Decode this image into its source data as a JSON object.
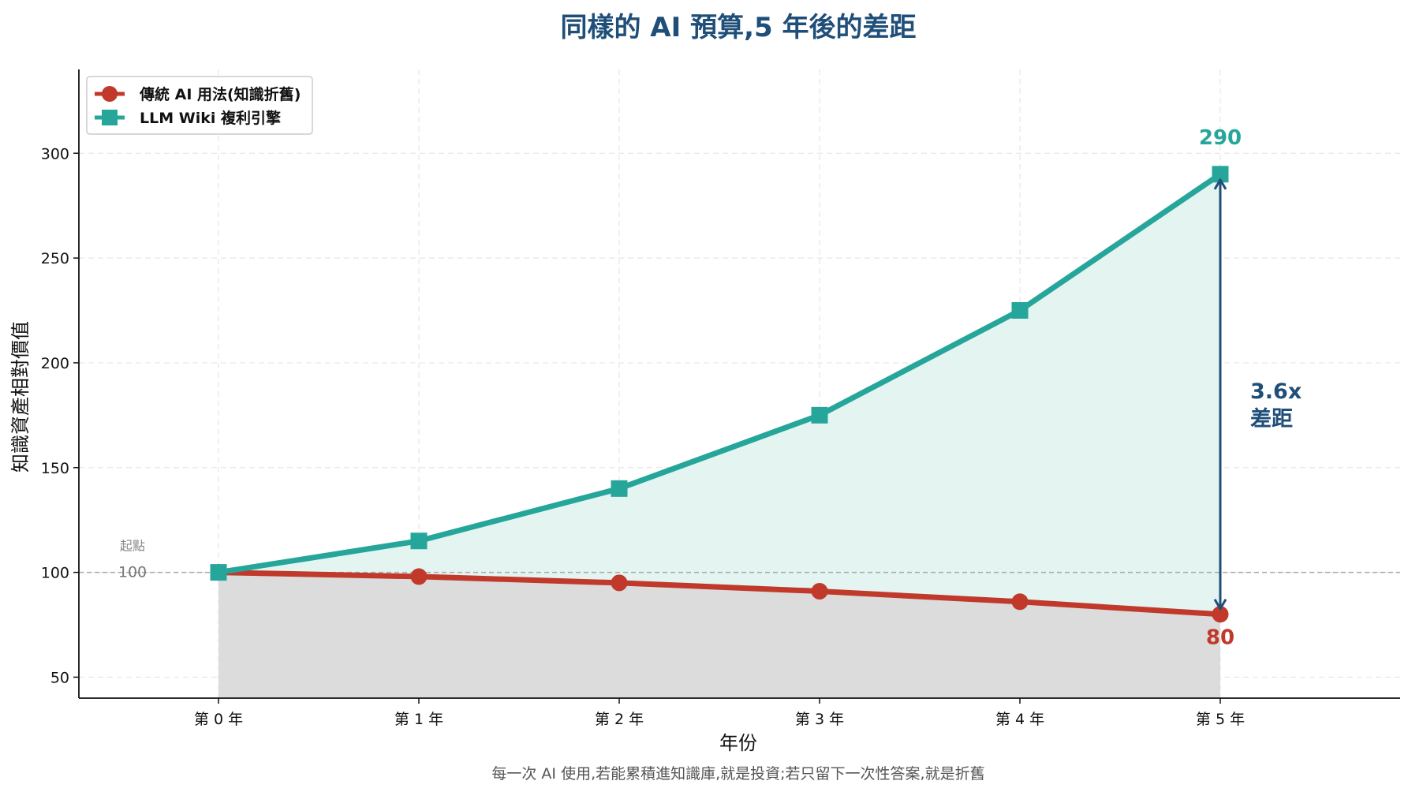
{
  "chart_data": {
    "type": "line",
    "title": "同樣的 AI 預算,5 年後的差距",
    "xlabel": "年份",
    "ylabel": "知識資產相對價值",
    "categories": [
      "第 0 年",
      "第 1 年",
      "第 2 年",
      "第 3 年",
      "第 4 年",
      "第 5 年"
    ],
    "series": [
      {
        "name": "傳統 AI 用法(知識折舊)",
        "values": [
          100,
          98,
          95,
          91,
          86,
          80
        ],
        "color": "#c0392b",
        "marker": "circle",
        "end_label": "80",
        "fill": "#dcdcdc"
      },
      {
        "name": "LLM Wiki 複利引擎",
        "values": [
          100,
          115,
          140,
          175,
          225,
          290
        ],
        "color": "#26a69a",
        "marker": "square",
        "end_label": "290",
        "fill": "#e3f4f1"
      }
    ],
    "ylim": [
      40,
      340
    ],
    "yticks": [
      "50",
      "100",
      "150",
      "200",
      "250",
      "300"
    ],
    "grid": true,
    "legend_position": "top-left",
    "baseline": {
      "value": 100,
      "label": "起點",
      "value_label": "100"
    },
    "gap_annotation": {
      "line1": "3.6x",
      "line2": "差距",
      "color": "#1f4e79"
    },
    "footnote": "每一次 AI 使用,若能累積進知識庫,就是投資;若只留下一次性答案,就是折舊",
    "title_color": "#1f4e79"
  }
}
